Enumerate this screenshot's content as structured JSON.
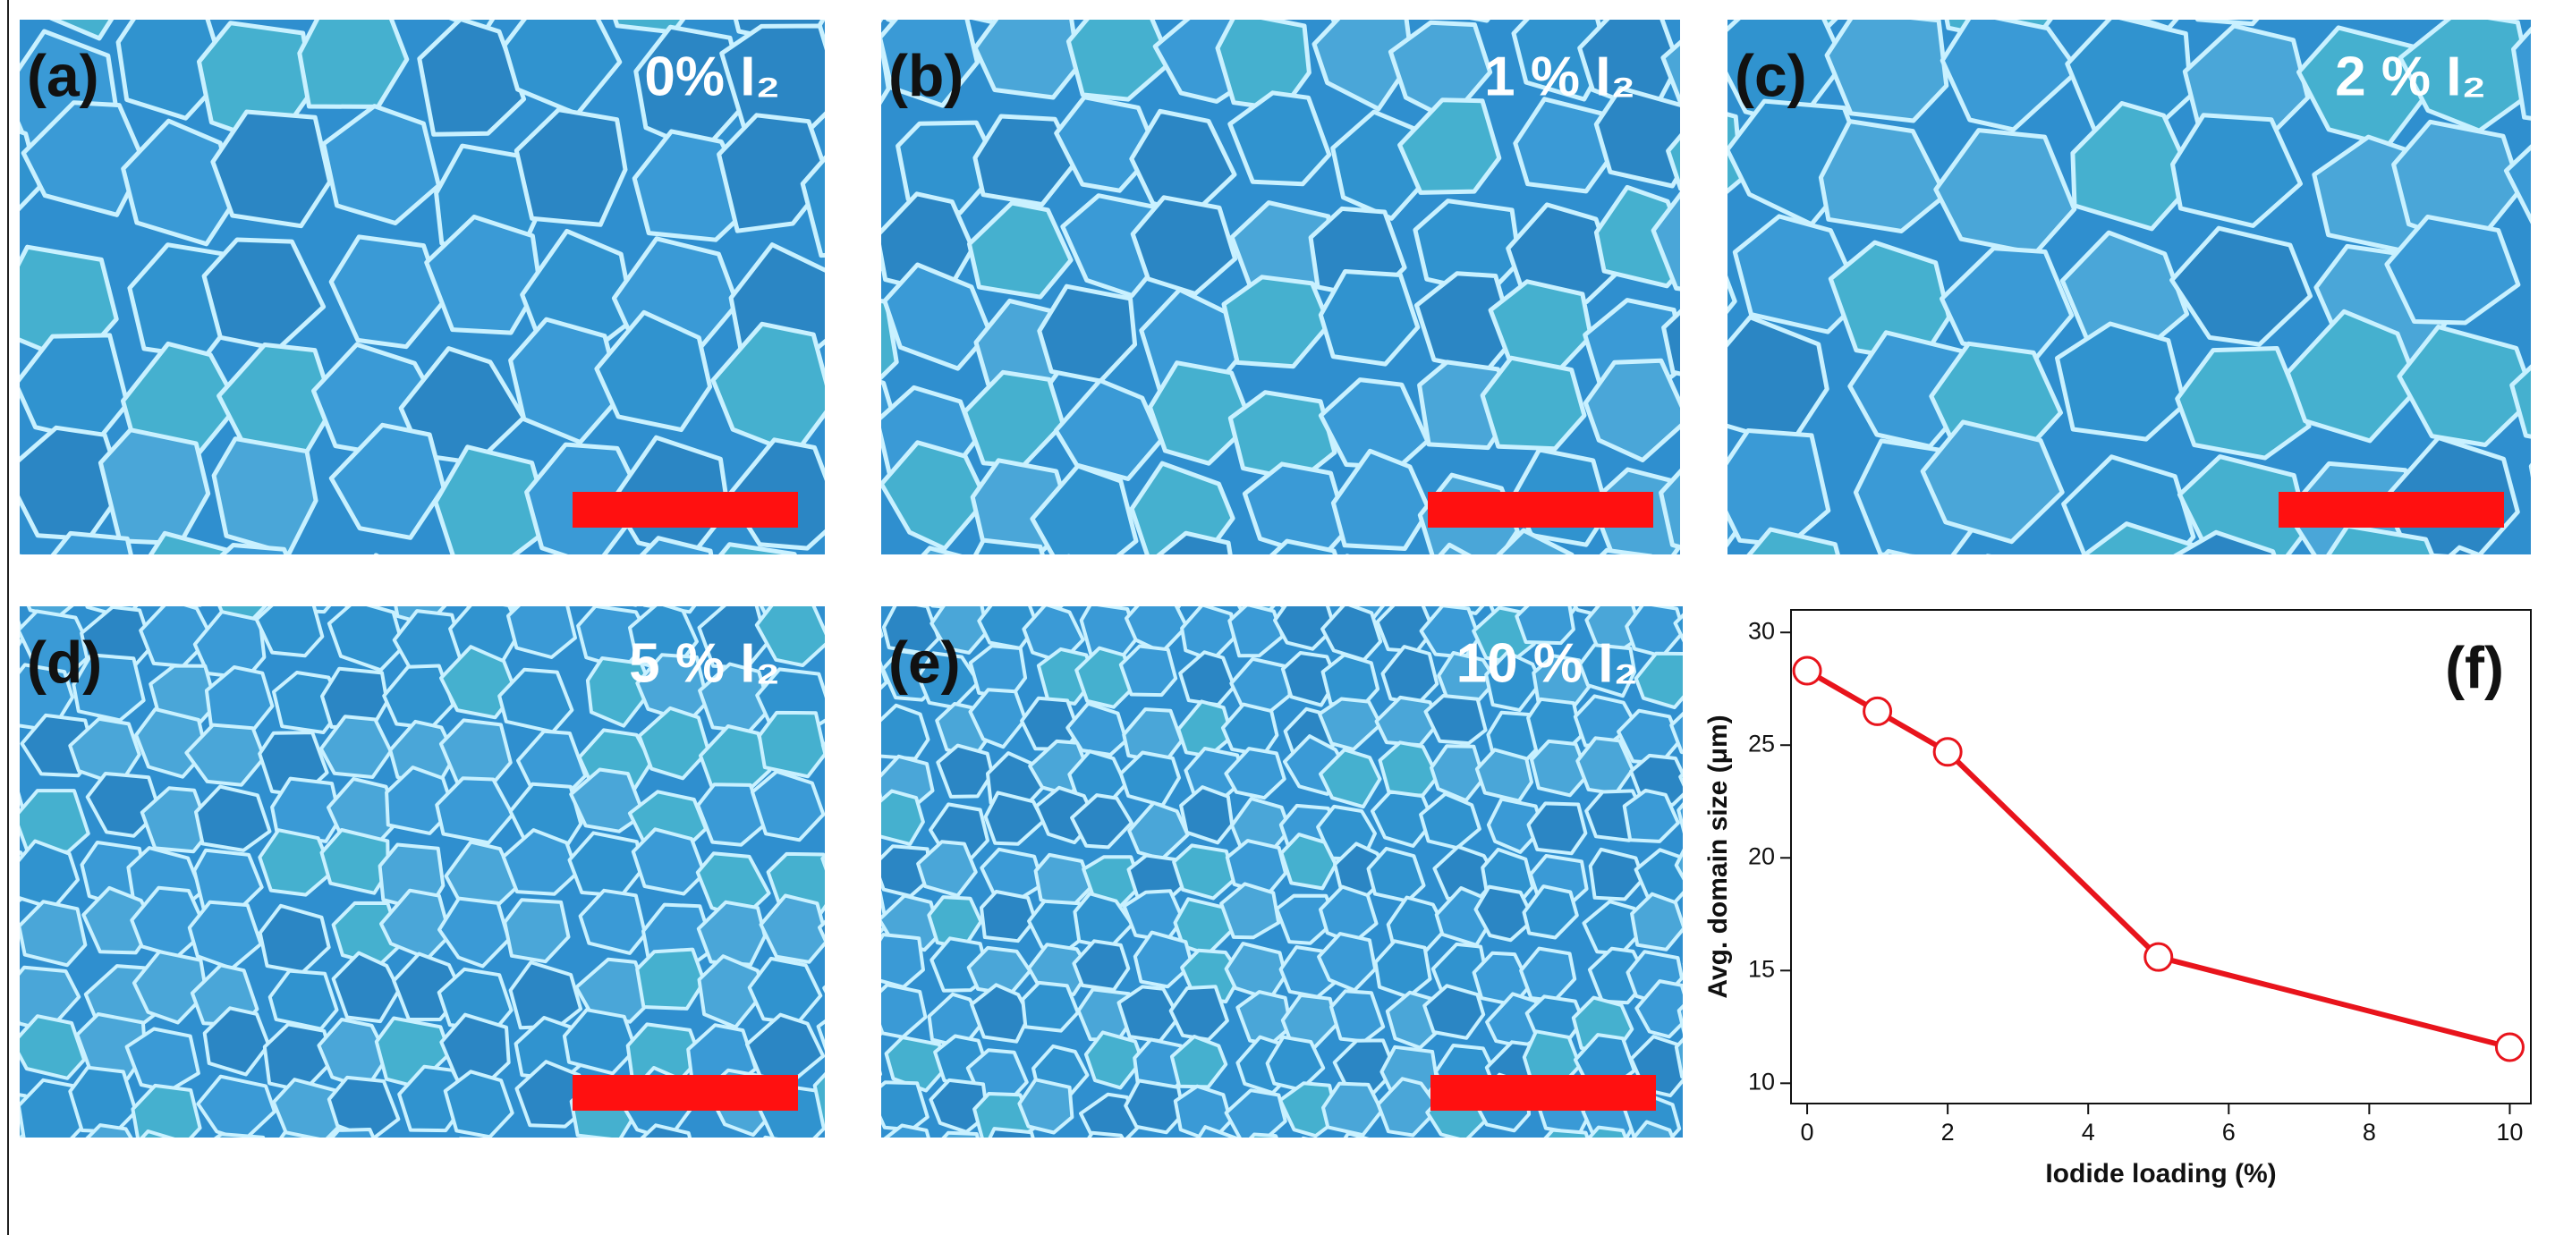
{
  "panels": [
    {
      "label": "(a)",
      "caption": "0% I₂"
    },
    {
      "label": "(b)",
      "caption": "1 % I₂"
    },
    {
      "label": "(c)",
      "caption": "2 % I₂"
    },
    {
      "label": "(d)",
      "caption": "5 % I₂"
    },
    {
      "label": "(e)",
      "caption": "10 % I₂"
    }
  ],
  "chart_data": {
    "type": "line",
    "panel_label": "(f)",
    "x_label": "Iodide loading (%)",
    "y_label": "Avg. domain size (μm)",
    "x": [
      0,
      1,
      2,
      5,
      10
    ],
    "values": [
      28.3,
      26.5,
      24.7,
      15.6,
      11.6
    ],
    "color": "#e8141c",
    "xlim": [
      -0.23,
      10.3
    ],
    "xticks": [
      0,
      2,
      4,
      6,
      8,
      10
    ],
    "ylim": [
      9.1,
      31
    ],
    "yticks": [
      10,
      15,
      20,
      25,
      30
    ]
  }
}
